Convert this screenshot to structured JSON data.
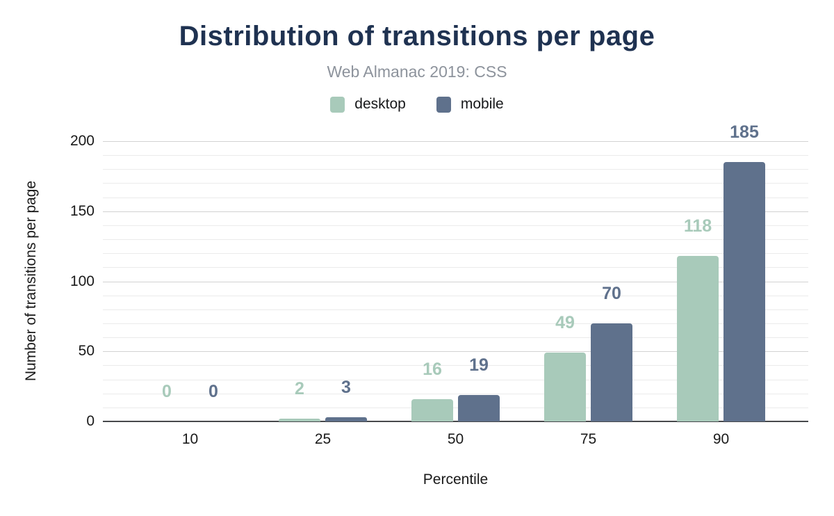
{
  "header": {
    "title": "Distribution of transitions per page",
    "subtitle": "Web Almanac 2019: CSS"
  },
  "legend": [
    {
      "label": "desktop",
      "color": "#a8caba"
    },
    {
      "label": "mobile",
      "color": "#5f718c"
    }
  ],
  "chart_data": {
    "type": "bar",
    "title": "Distribution of transitions per page",
    "subtitle": "Web Almanac 2019: CSS",
    "categories": [
      "10",
      "25",
      "50",
      "75",
      "90"
    ],
    "series": [
      {
        "name": "desktop",
        "color": "#a8caba",
        "values": [
          0,
          2,
          16,
          49,
          118
        ]
      },
      {
        "name": "mobile",
        "color": "#5f718c",
        "values": [
          0,
          3,
          19,
          70,
          185
        ]
      }
    ],
    "xlabel": "Percentile",
    "ylabel": "Number of transitions per page",
    "ylim": [
      0,
      200
    ],
    "yticks": [
      0,
      50,
      100,
      150,
      200
    ],
    "grid": {
      "minor_step": 10,
      "major_step": 50
    },
    "legend_position": "top",
    "value_labels": true
  },
  "colors": {
    "title": "#1f3251",
    "subtitle": "#8d939c",
    "axis_text": "#1a1a1a",
    "grid_minor": "#ebebeb",
    "grid_major": "#d2d2d2",
    "baseline": "#47494c",
    "background": "#ffffff"
  }
}
